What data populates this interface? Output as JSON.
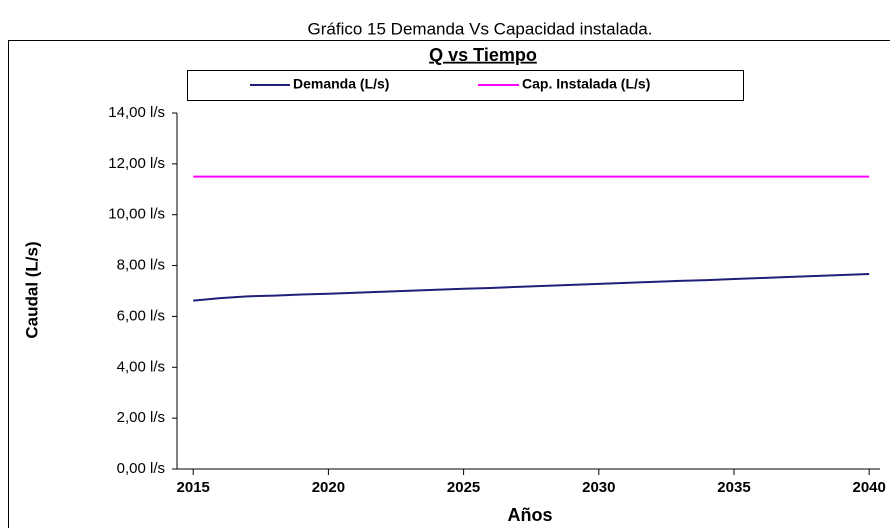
{
  "chart_data": {
    "type": "line",
    "caption": "Gráfico 15 Demanda Vs Capacidad instalada.",
    "title": "Q vs Tiempo",
    "xlabel": "Años",
    "ylabel": "Caudal (L/s)",
    "x": [
      2015,
      2016,
      2017,
      2018,
      2019,
      2020,
      2021,
      2022,
      2023,
      2024,
      2025,
      2026,
      2027,
      2028,
      2029,
      2030,
      2031,
      2032,
      2033,
      2034,
      2035,
      2036,
      2037,
      2038,
      2039,
      2040
    ],
    "series": [
      {
        "name": "Demanda (L/s)",
        "color": "#1f1f7a",
        "values": [
          6.62,
          6.72,
          6.79,
          6.82,
          6.86,
          6.89,
          6.93,
          6.97,
          7.01,
          7.05,
          7.09,
          7.12,
          7.16,
          7.2,
          7.24,
          7.28,
          7.32,
          7.36,
          7.4,
          7.43,
          7.47,
          7.51,
          7.55,
          7.59,
          7.63,
          7.67
        ]
      },
      {
        "name": "Cap. Instalada (L/s)",
        "color": "#ff00ff",
        "values": [
          11.5,
          11.5,
          11.5,
          11.5,
          11.5,
          11.5,
          11.5,
          11.5,
          11.5,
          11.5,
          11.5,
          11.5,
          11.5,
          11.5,
          11.5,
          11.5,
          11.5,
          11.5,
          11.5,
          11.5,
          11.5,
          11.5,
          11.5,
          11.5,
          11.5,
          11.5
        ]
      }
    ],
    "xlim": [
      2014.4,
      2040.4
    ],
    "xticks": [
      2015,
      2020,
      2025,
      2030,
      2035,
      2040
    ],
    "ylim": [
      0,
      14
    ],
    "yticks": [
      {
        "value": 0,
        "label": "0,00 l/s"
      },
      {
        "value": 2,
        "label": "2,00 l/s"
      },
      {
        "value": 4,
        "label": "4,00 l/s"
      },
      {
        "value": 6,
        "label": "6,00 l/s"
      },
      {
        "value": 8,
        "label": "8,00 l/s"
      },
      {
        "value": 10,
        "label": "10,00 l/s"
      },
      {
        "value": 12,
        "label": "12,00 l/s"
      },
      {
        "value": 14,
        "label": "14,00 l/s"
      }
    ],
    "grid": false,
    "legend": "top"
  }
}
